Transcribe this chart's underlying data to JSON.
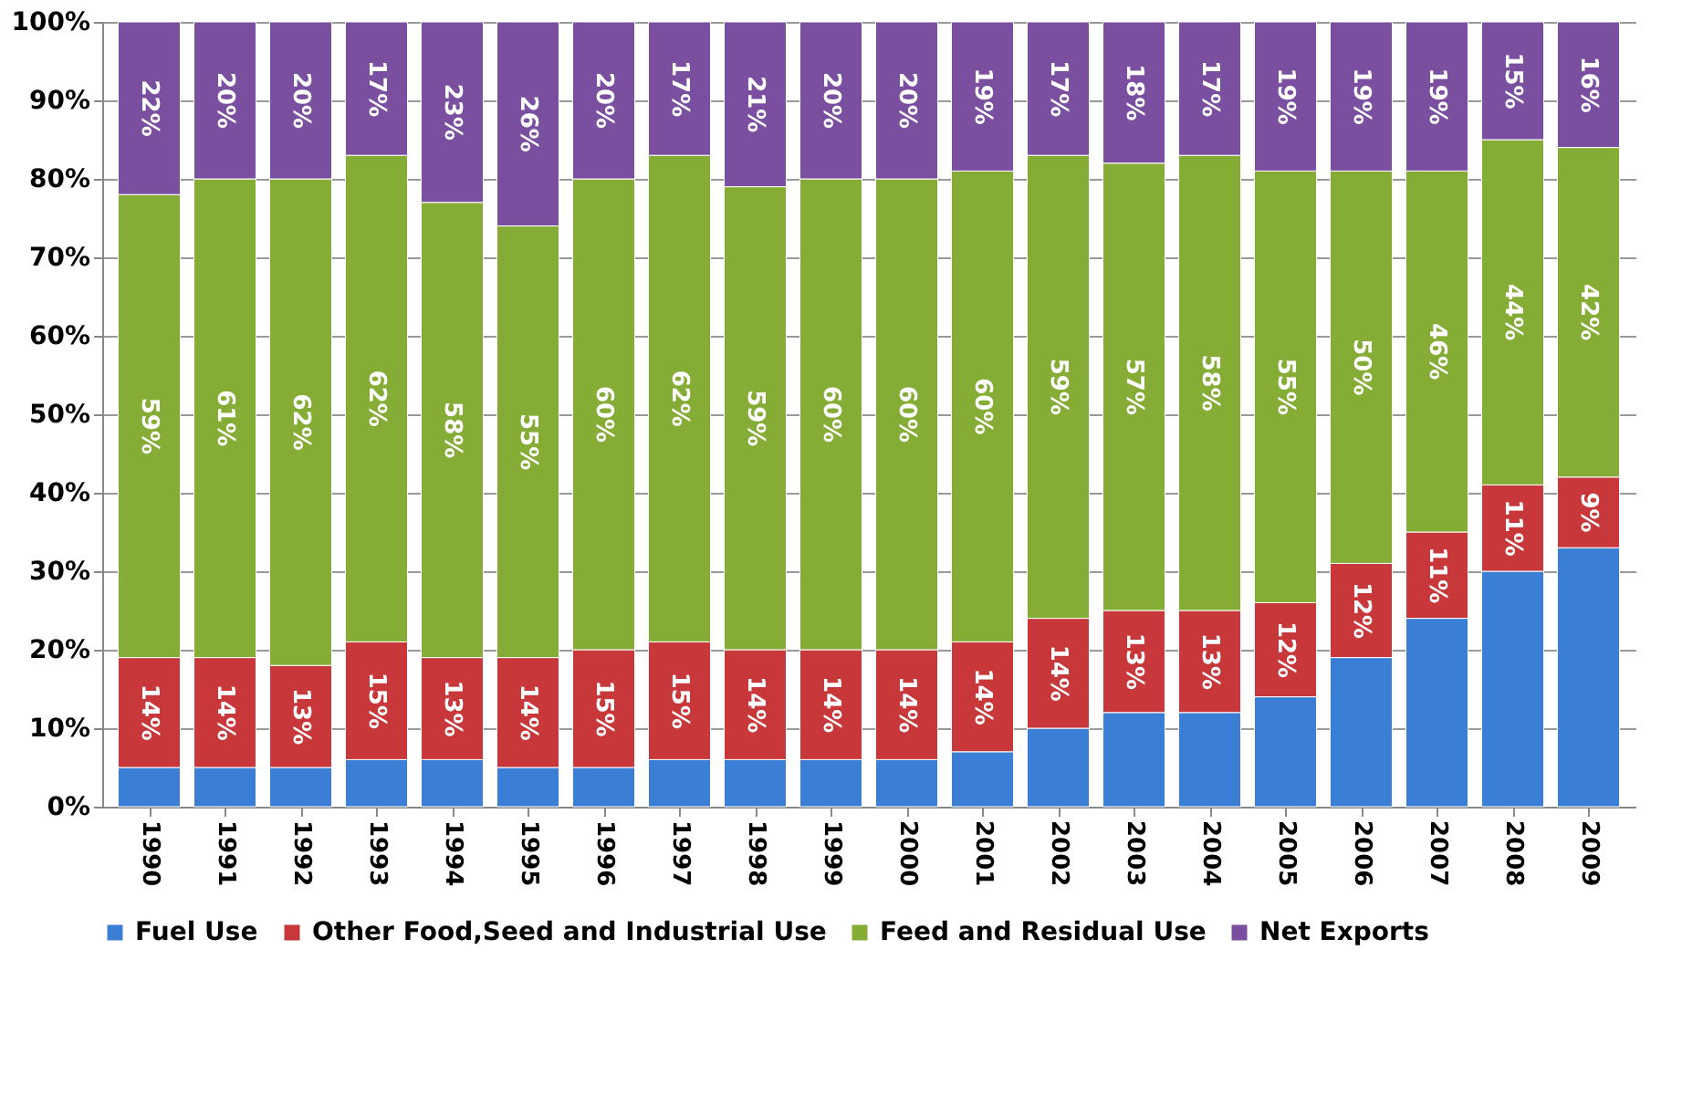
{
  "chart_data": {
    "type": "bar",
    "stacked": true,
    "categories": [
      "1990",
      "1991",
      "1992",
      "1993",
      "1994",
      "1995",
      "1996",
      "1997",
      "1998",
      "1999",
      "2000",
      "2001",
      "2002",
      "2003",
      "2004",
      "2005",
      "2006",
      "2007",
      "2008",
      "2009"
    ],
    "series": [
      {
        "name": "Fuel Use",
        "color": "#3a7fd5",
        "values": [
          5,
          5,
          5,
          6,
          6,
          5,
          5,
          6,
          6,
          6,
          6,
          7,
          10,
          12,
          12,
          14,
          19,
          24,
          30,
          33
        ]
      },
      {
        "name": "Other Food,Seed and Industrial Use",
        "color": "#c8373a",
        "values": [
          14,
          14,
          13,
          15,
          13,
          14,
          15,
          15,
          14,
          14,
          14,
          14,
          14,
          13,
          13,
          12,
          12,
          11,
          11,
          9
        ],
        "value_labels": [
          "14%",
          "14%",
          "13%",
          "15%",
          "13%",
          "14%",
          "15%",
          "15%",
          "14%",
          "14%",
          "14%",
          "14%",
          "14%",
          "13%",
          "13%",
          "12%",
          "12%",
          "11%",
          "11%",
          "9%"
        ]
      },
      {
        "name": "Feed and Residual Use",
        "color": "#85ad35",
        "values": [
          59,
          61,
          62,
          62,
          58,
          55,
          60,
          62,
          59,
          60,
          60,
          60,
          59,
          57,
          58,
          55,
          50,
          46,
          44,
          42
        ],
        "value_labels": [
          "59%",
          "61%",
          "62%",
          "62%",
          "58%",
          "55%",
          "60%",
          "62%",
          "59%",
          "60%",
          "60%",
          "60%",
          "59%",
          "57%",
          "58%",
          "55%",
          "50%",
          "46%",
          "44%",
          "42%"
        ]
      },
      {
        "name": "Net Exports",
        "color": "#7b4fa0",
        "values": [
          22,
          20,
          20,
          17,
          23,
          26,
          20,
          17,
          21,
          20,
          20,
          19,
          17,
          18,
          17,
          19,
          19,
          19,
          15,
          16
        ],
        "value_labels": [
          "22%",
          "20%",
          "20%",
          "17%",
          "23%",
          "26%",
          "20%",
          "17%",
          "21%",
          "20%",
          "20%",
          "19%",
          "17%",
          "18%",
          "17%",
          "19%",
          "19%",
          "19%",
          "15%",
          "16%"
        ]
      }
    ],
    "ylim": [
      0,
      100
    ],
    "yticks": [
      {
        "value": 0,
        "label": "0%"
      },
      {
        "value": 10,
        "label": "10%"
      },
      {
        "value": 20,
        "label": "20%"
      },
      {
        "value": 30,
        "label": "30%"
      },
      {
        "value": 40,
        "label": "40%"
      },
      {
        "value": 50,
        "label": "50%"
      },
      {
        "value": 60,
        "label": "60%"
      },
      {
        "value": 70,
        "label": "70%"
      },
      {
        "value": 80,
        "label": "80%"
      },
      {
        "value": 90,
        "label": "90%"
      },
      {
        "value": 100,
        "label": "100%"
      }
    ],
    "grid": "y",
    "legend": "bottom"
  }
}
